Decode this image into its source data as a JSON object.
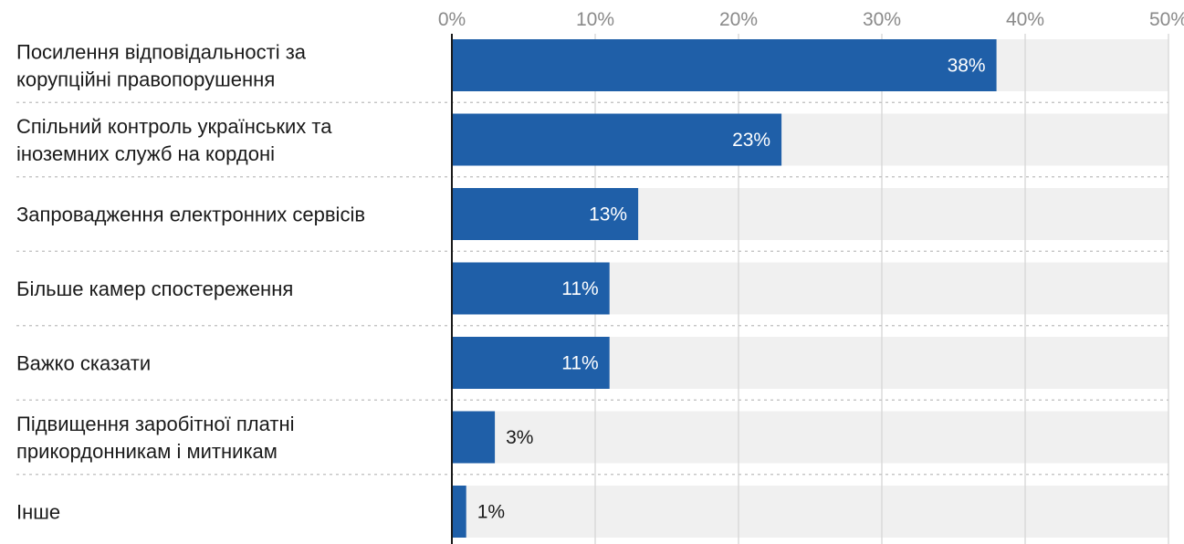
{
  "chart_data": {
    "type": "bar",
    "orientation": "horizontal",
    "categories": [
      [
        "Посилення відповідальності за",
        "корупційні правопорушення"
      ],
      [
        "Спільний контроль українських та",
        "іноземних служб на кордоні"
      ],
      [
        "Запровадження електронних сервісів"
      ],
      [
        "Більше камер спостереження"
      ],
      [
        "Важко сказати"
      ],
      [
        "Підвищення заробітної платні",
        "прикордонникам і митникам"
      ],
      [
        "Інше"
      ]
    ],
    "values": [
      38,
      23,
      13,
      11,
      11,
      3,
      1
    ],
    "value_labels": [
      "38%",
      "23%",
      "13%",
      "11%",
      "11%",
      "3%",
      "1%"
    ],
    "xlim": [
      0,
      50
    ],
    "ticks": [
      0,
      10,
      20,
      30,
      40,
      50
    ],
    "tick_labels": [
      "0%",
      "10%",
      "20%",
      "30%",
      "40%",
      "50%"
    ],
    "grid": true,
    "axis_position": "top",
    "colors": {
      "bar": "#1f5fa8",
      "track": "#f0f0f0",
      "grid": "#d6d6d6",
      "separator": "#bdbdbd",
      "baseline": "#1a1a1a"
    }
  }
}
